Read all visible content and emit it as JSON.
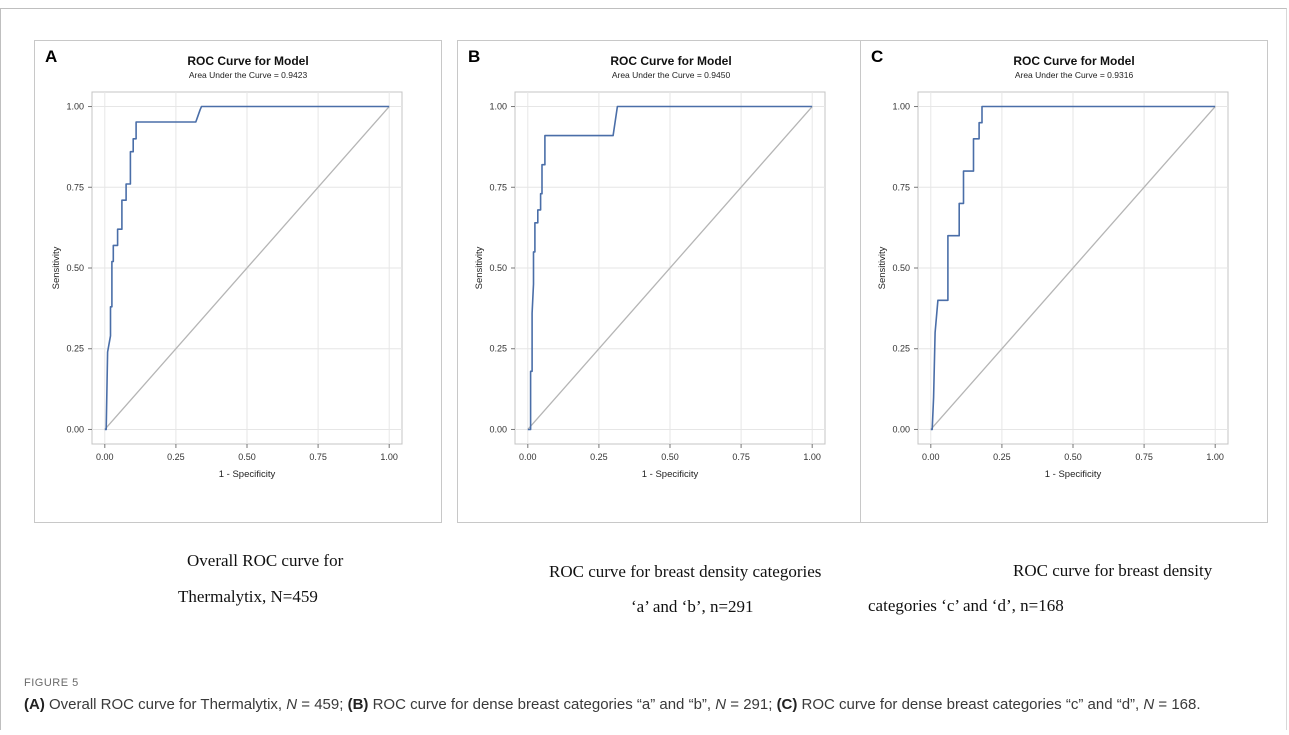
{
  "figure_label": "FIGURE 5",
  "caption": {
    "a_tag": "(A)",
    "a_text": " Overall ROC curve for Thermalytix, ",
    "a_n": "N",
    "a_nval": " = 459; ",
    "b_tag": "(B)",
    "b_text": " ROC curve for dense breast categories “a” and “b”, ",
    "b_n": "N",
    "b_nval": " = 291; ",
    "c_tag": "(C)",
    "c_text": " ROC curve for dense breast categories “c” and “d”, ",
    "c_n": "N",
    "c_nval": " = 168."
  },
  "subcaptions": {
    "a_line1": "Overall ROC curve for",
    "a_line2": "Thermalytix, N=459",
    "b_line1": "ROC curve for breast density categories",
    "b_line2": "‘a’ and ‘b’, n=291",
    "c_line1": "ROC curve for breast density",
    "c_line2": "categories ‘c’ and ‘d’, n=168"
  },
  "colors": {
    "curve": "#4a6ea8",
    "diagonal": "#b5b5b5",
    "grid": "#e6e6e6"
  },
  "chart_data": [
    {
      "panel": "A",
      "type": "line",
      "title": "ROC Curve for Model",
      "subtitle": "Area Under the Curve = 0.9423",
      "xlabel": "1 - Specificity",
      "ylabel": "Sensitivity",
      "xlim": [
        0,
        1
      ],
      "ylim": [
        0,
        1
      ],
      "xticks": [
        "0.00",
        "0.25",
        "0.50",
        "0.75",
        "1.00"
      ],
      "yticks": [
        "0.00",
        "0.25",
        "0.50",
        "0.75",
        "1.00"
      ],
      "grid": true,
      "x": [
        0.0,
        0.005,
        0.01,
        0.02,
        0.02,
        0.025,
        0.025,
        0.03,
        0.03,
        0.045,
        0.045,
        0.06,
        0.06,
        0.065,
        0.065,
        0.075,
        0.075,
        0.09,
        0.09,
        0.1,
        0.1,
        0.11,
        0.11,
        0.32,
        0.335,
        0.34,
        1.0
      ],
      "y": [
        0.0,
        0.0,
        0.24,
        0.29,
        0.38,
        0.38,
        0.52,
        0.52,
        0.57,
        0.57,
        0.62,
        0.62,
        0.71,
        0.71,
        0.71,
        0.71,
        0.76,
        0.76,
        0.86,
        0.86,
        0.9,
        0.9,
        0.952,
        0.952,
        0.99,
        1.0,
        1.0
      ]
    },
    {
      "panel": "B",
      "type": "line",
      "title": "ROC Curve for Model",
      "subtitle": "Area Under the Curve = 0.9450",
      "xlabel": "1 - Specificity",
      "ylabel": "Sensitivity",
      "xlim": [
        0,
        1
      ],
      "ylim": [
        0,
        1
      ],
      "xticks": [
        "0.00",
        "0.25",
        "0.50",
        "0.75",
        "1.00"
      ],
      "yticks": [
        "0.00",
        "0.25",
        "0.50",
        "0.75",
        "1.00"
      ],
      "grid": true,
      "x": [
        0.0,
        0.01,
        0.01,
        0.015,
        0.015,
        0.02,
        0.02,
        0.025,
        0.025,
        0.035,
        0.035,
        0.045,
        0.045,
        0.05,
        0.05,
        0.06,
        0.06,
        0.3,
        0.315,
        1.0
      ],
      "y": [
        0.0,
        0.0,
        0.18,
        0.18,
        0.36,
        0.45,
        0.55,
        0.55,
        0.64,
        0.64,
        0.68,
        0.68,
        0.73,
        0.73,
        0.82,
        0.82,
        0.91,
        0.91,
        1.0,
        1.0
      ]
    },
    {
      "panel": "C",
      "type": "line",
      "title": "ROC Curve for Model",
      "subtitle": "Area Under the Curve = 0.9316",
      "xlabel": "1 - Specificity",
      "ylabel": "Sensitivity",
      "xlim": [
        0,
        1
      ],
      "ylim": [
        0,
        1
      ],
      "xticks": [
        "0.00",
        "0.25",
        "0.50",
        "0.75",
        "1.00"
      ],
      "yticks": [
        "0.00",
        "0.25",
        "0.50",
        "0.75",
        "1.00"
      ],
      "grid": true,
      "x": [
        0.0,
        0.005,
        0.01,
        0.015,
        0.02,
        0.025,
        0.03,
        0.04,
        0.04,
        0.06,
        0.06,
        0.1,
        0.1,
        0.115,
        0.115,
        0.15,
        0.15,
        0.17,
        0.17,
        0.18,
        0.18,
        1.0
      ],
      "y": [
        0.0,
        0.0,
        0.1,
        0.3,
        0.35,
        0.4,
        0.4,
        0.4,
        0.4,
        0.4,
        0.6,
        0.6,
        0.7,
        0.7,
        0.8,
        0.8,
        0.9,
        0.9,
        0.95,
        0.95,
        1.0,
        1.0
      ]
    }
  ]
}
